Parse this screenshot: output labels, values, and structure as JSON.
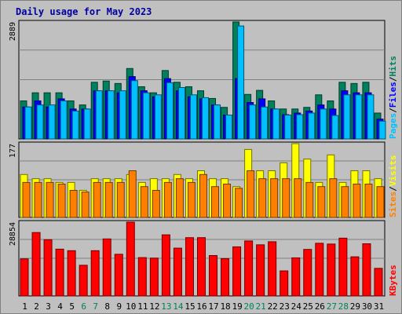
{
  "title": "Daily usage for May 2023",
  "colors": {
    "hits": "#00805c",
    "files": "#0000ff",
    "pages": "#00c0ff",
    "visits": "#ffff00",
    "sites": "#ff8000",
    "kbytes": "#ff0000",
    "weekend_label": "#00805c",
    "weekday_label": "#000000"
  },
  "chart_data": [
    {
      "type": "bar",
      "panel": "hits-files-pages",
      "max_label": "2889",
      "legend": [
        "Pages",
        "/",
        "Files",
        "/",
        "Hits"
      ],
      "ylim": [
        0,
        2889
      ],
      "categories": [
        "1",
        "2",
        "3",
        "4",
        "5",
        "6",
        "7",
        "8",
        "9",
        "10",
        "11",
        "12",
        "13",
        "14",
        "15",
        "16",
        "17",
        "18",
        "19",
        "20",
        "21",
        "22",
        "23",
        "24",
        "25",
        "26",
        "27",
        "28",
        "29",
        "30",
        "31"
      ],
      "weekend": [
        6,
        7,
        13,
        14,
        20,
        21,
        27,
        28
      ],
      "series": [
        {
          "name": "Hits",
          "values": [
            940,
            1140,
            1140,
            1140,
            940,
            840,
            1400,
            1430,
            1370,
            1740,
            1290,
            1140,
            1690,
            1400,
            1290,
            1190,
            1000,
            780,
            2889,
            1100,
            1200,
            940,
            740,
            740,
            780,
            1090,
            940,
            1400,
            1370,
            1400,
            640
          ]
        },
        {
          "name": "Files",
          "values": [
            790,
            940,
            790,
            990,
            740,
            740,
            1190,
            1190,
            1140,
            1540,
            1190,
            1040,
            1490,
            1190,
            1040,
            990,
            840,
            590,
            1490,
            900,
            990,
            740,
            600,
            640,
            690,
            840,
            740,
            1190,
            1140,
            1140,
            490
          ]
        },
        {
          "name": "Pages",
          "values": [
            790,
            840,
            840,
            940,
            690,
            740,
            1190,
            1190,
            1190,
            1440,
            1140,
            1090,
            1390,
            1270,
            1090,
            1020,
            840,
            590,
            2790,
            840,
            790,
            740,
            590,
            600,
            640,
            740,
            580,
            1090,
            1090,
            1090,
            440
          ]
        }
      ]
    },
    {
      "type": "bar",
      "panel": "visits-sites",
      "max_label": "177",
      "legend": [
        "Sites",
        "/",
        "Visits"
      ],
      "ylim": [
        0,
        177
      ],
      "series": [
        {
          "name": "Visits",
          "values": [
            103,
            93,
            93,
            84,
            84,
            65,
            93,
            93,
            93,
            103,
            84,
            93,
            93,
            103,
            93,
            112,
            93,
            93,
            74,
            163,
            112,
            112,
            131,
            177,
            140,
            84,
            150,
            84,
            112,
            112,
            93
          ]
        },
        {
          "name": "Sites",
          "values": [
            84,
            84,
            84,
            80,
            65,
            61,
            84,
            84,
            84,
            112,
            74,
            65,
            84,
            93,
            84,
            103,
            74,
            80,
            70,
            112,
            93,
            93,
            93,
            93,
            84,
            74,
            93,
            74,
            80,
            80,
            74
          ]
        }
      ]
    },
    {
      "type": "bar",
      "panel": "kbytes",
      "max_label": "28854",
      "legend": [
        "KBytes"
      ],
      "ylim": [
        0,
        28854
      ],
      "series": [
        {
          "name": "KBytes",
          "values": [
            14500,
            24800,
            22000,
            18300,
            17700,
            12000,
            17700,
            22300,
            16300,
            28854,
            15000,
            14800,
            23900,
            18700,
            22800,
            22800,
            15800,
            14600,
            19200,
            21500,
            20000,
            21200,
            9800,
            14900,
            18200,
            20600,
            20300,
            22600,
            15300,
            20400,
            10800
          ]
        }
      ]
    }
  ]
}
